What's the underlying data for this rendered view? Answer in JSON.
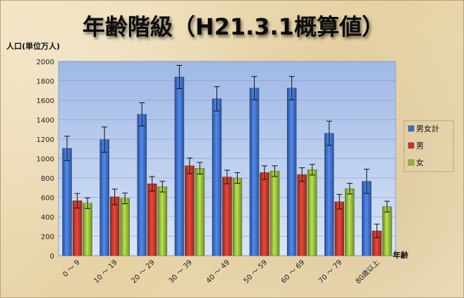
{
  "chart_data": {
    "type": "bar",
    "title": "年齢階級（H21.3.1概算値）",
    "ylabel": "人口(単位万人)",
    "xlabel": "年齢",
    "ylim": [
      0,
      2000
    ],
    "ytick_step": 200,
    "grid": true,
    "legend_position": "right",
    "categories": [
      "0 ～ 9",
      "10 ～ 19",
      "20 ～ 29",
      "30 ～ 39",
      "40 ～ 49",
      "50 ～ 59",
      "60 ～ 69",
      "70 ～ 79",
      "80歳以上"
    ],
    "series": [
      {
        "name": "男女計",
        "color": "#3f6fc4",
        "values": [
          1105,
          1195,
          1455,
          1840,
          1615,
          1725,
          1725,
          1260,
          765
        ],
        "errors": [
          125,
          130,
          120,
          120,
          125,
          120,
          120,
          125,
          125
        ]
      },
      {
        "name": "男",
        "color": "#c0392b",
        "values": [
          565,
          605,
          740,
          925,
          810,
          855,
          835,
          555,
          255
        ],
        "errors": [
          75,
          80,
          75,
          80,
          70,
          70,
          70,
          75,
          70
        ]
      },
      {
        "name": "女",
        "color": "#93b83a",
        "values": [
          540,
          590,
          710,
          900,
          800,
          870,
          885,
          690,
          505
        ],
        "errors": [
          55,
          55,
          55,
          60,
          55,
          55,
          55,
          55,
          55
        ]
      }
    ]
  }
}
